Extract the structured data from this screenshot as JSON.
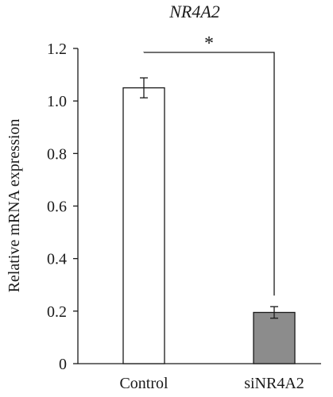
{
  "chart_data": {
    "type": "bar",
    "title": "NR4A2",
    "ylabel": "Relative mRNA expression",
    "xlabel": "",
    "ylim": [
      0,
      1.2
    ],
    "yticks": [
      0,
      0.2,
      0.4,
      0.6,
      0.8,
      1.0,
      1.2
    ],
    "ytick_labels": [
      "0",
      "0.2",
      "0.4",
      "0.6",
      "0.8",
      "1.0",
      "1.2"
    ],
    "categories": [
      "Control",
      "siNR4A2"
    ],
    "values": [
      1.05,
      0.195
    ],
    "errors": [
      0.038,
      0.022
    ],
    "bar_colors": [
      "#ffffff",
      "#8c8c8c"
    ],
    "significance": {
      "between": [
        0,
        1
      ],
      "label": "*"
    },
    "grid": false,
    "legend": "none"
  }
}
